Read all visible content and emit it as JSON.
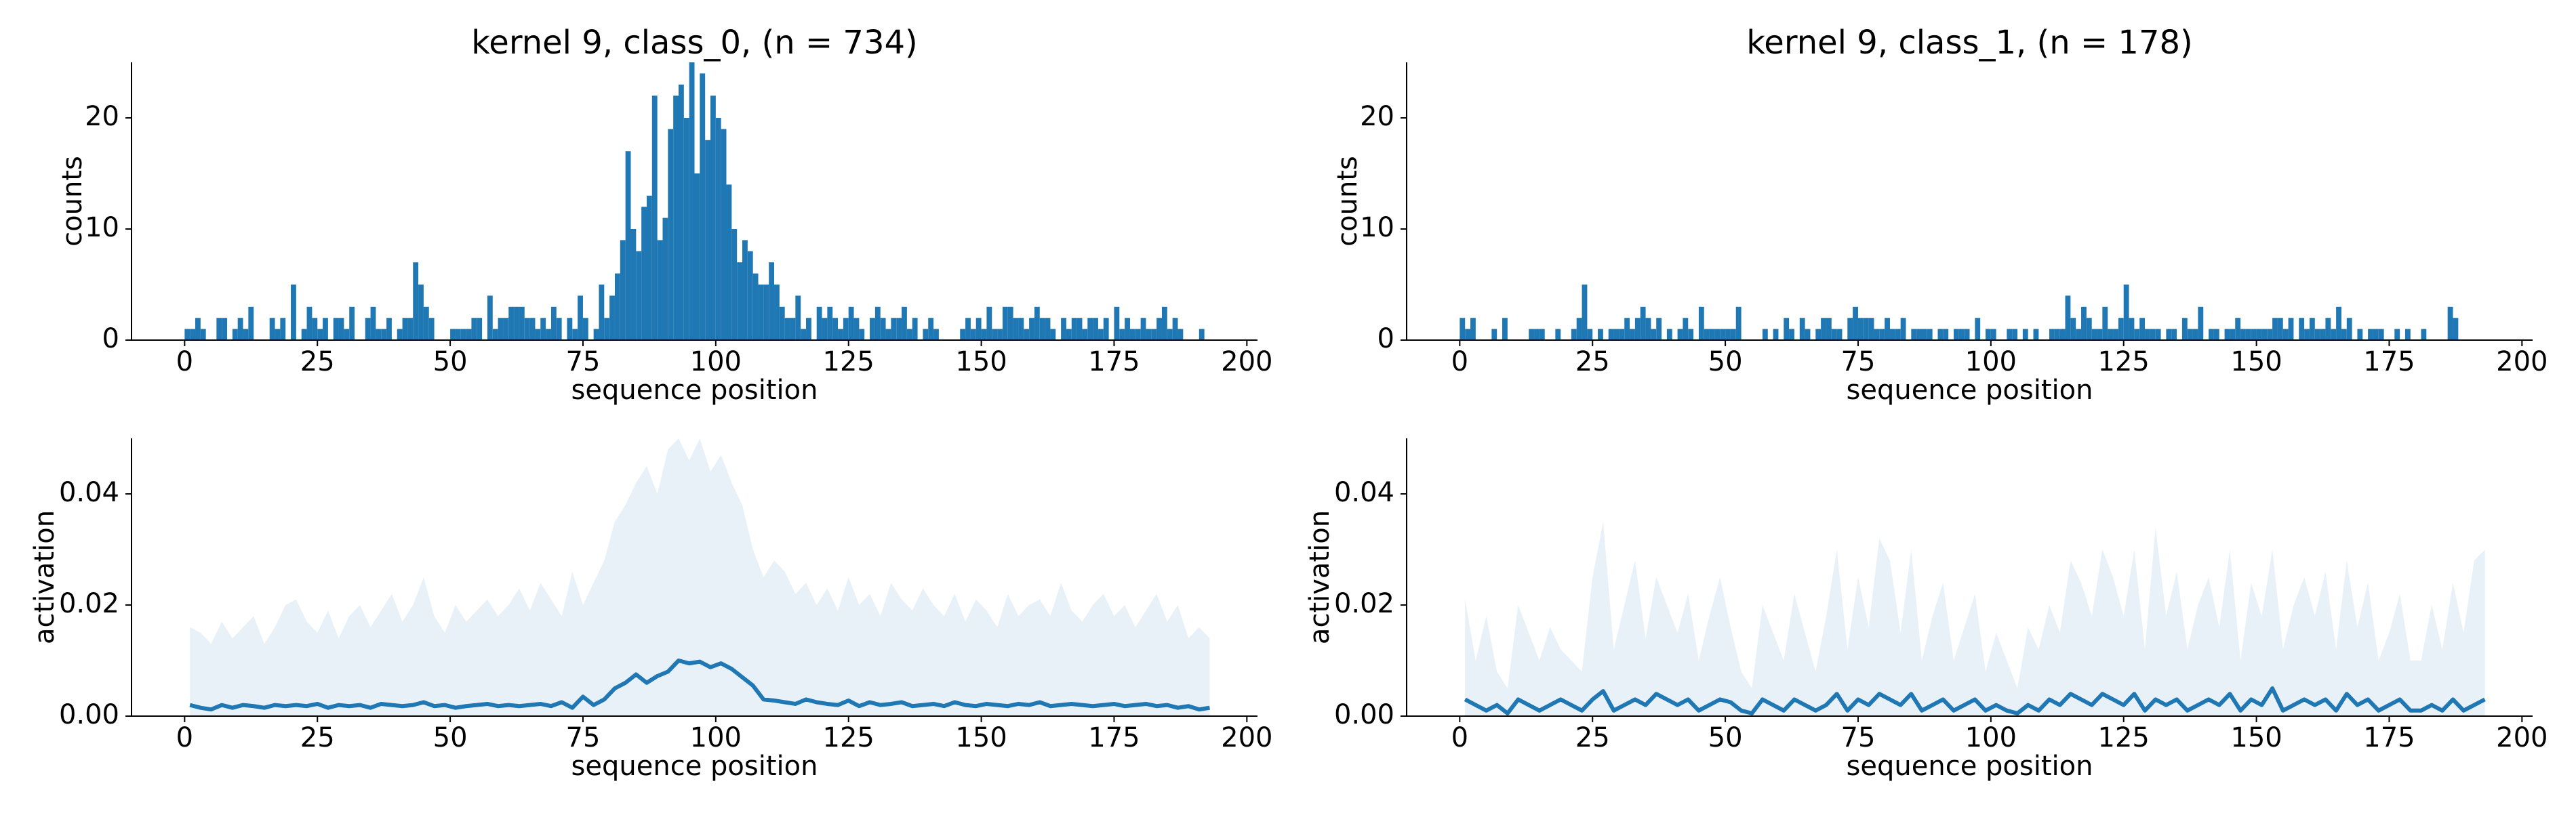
{
  "chart_data": [
    {
      "type": "histogram",
      "title": "kernel 9, class_0, (n = 734)",
      "xlabel": "sequence position",
      "ylabel": "counts",
      "color": "#1f77b4",
      "xlim": [
        -10,
        202
      ],
      "ylim": [
        0,
        25
      ],
      "xticks": [
        0,
        25,
        50,
        75,
        100,
        125,
        150,
        175,
        200
      ],
      "yticks": [
        0,
        10,
        20
      ],
      "bins": [
        0,
        1,
        2,
        3,
        4,
        5,
        6,
        7,
        8,
        9,
        10,
        11,
        12,
        13,
        14,
        15,
        16,
        17,
        18,
        19,
        20,
        21,
        22,
        23,
        24,
        25,
        26,
        27,
        28,
        29,
        30,
        31,
        32,
        33,
        34,
        35,
        36,
        37,
        38,
        39,
        40,
        41,
        42,
        43,
        44,
        45,
        46,
        47,
        48,
        49,
        50,
        51,
        52,
        53,
        54,
        55,
        56,
        57,
        58,
        59,
        60,
        61,
        62,
        63,
        64,
        65,
        66,
        67,
        68,
        69,
        70,
        71,
        72,
        73,
        74,
        75,
        76,
        77,
        78,
        79,
        80,
        81,
        82,
        83,
        84,
        85,
        86,
        87,
        88,
        89,
        90,
        91,
        92,
        93,
        94,
        95,
        96,
        97,
        98,
        99,
        100,
        101,
        102,
        103,
        104,
        105,
        106,
        107,
        108,
        109,
        110,
        111,
        112,
        113,
        114,
        115,
        116,
        117,
        118,
        119,
        120,
        121,
        122,
        123,
        124,
        125,
        126,
        127,
        128,
        129,
        130,
        131,
        132,
        133,
        134,
        135,
        136,
        137,
        138,
        139,
        140,
        141,
        142,
        143,
        144,
        145,
        146,
        147,
        148,
        149,
        150,
        151,
        152,
        153,
        154,
        155,
        156,
        157,
        158,
        159,
        160,
        161,
        162,
        163,
        164,
        165,
        166,
        167,
        168,
        169,
        170,
        171,
        172,
        173,
        174,
        175,
        176,
        177,
        178,
        179,
        180,
        181,
        182,
        183,
        184,
        185,
        186,
        187,
        188,
        189,
        190,
        191,
        192,
        193,
        194
      ],
      "values": [
        1,
        1,
        2,
        1,
        0,
        0,
        2,
        2,
        0,
        1,
        2,
        1,
        3,
        0,
        0,
        0,
        2,
        1,
        2,
        0,
        5,
        0,
        1,
        3,
        2,
        1,
        2,
        0,
        2,
        2,
        1,
        3,
        0,
        0,
        2,
        3,
        1,
        1,
        2,
        0,
        1,
        2,
        2,
        7,
        5,
        3,
        2,
        0,
        0,
        0,
        1,
        1,
        1,
        1,
        2,
        2,
        0,
        4,
        1,
        2,
        2,
        3,
        3,
        3,
        2,
        2,
        1,
        2,
        1,
        3,
        2,
        0,
        2,
        1,
        4,
        2,
        0,
        1,
        5,
        2,
        4,
        6,
        9,
        17,
        10,
        8,
        12,
        13,
        22,
        9,
        11,
        19,
        22,
        23,
        20,
        25,
        15,
        24,
        18,
        22,
        20,
        19,
        14,
        10,
        7,
        9,
        8,
        6,
        5,
        5,
        7,
        5,
        3,
        2,
        2,
        4,
        1,
        2,
        0,
        3,
        2,
        3,
        2,
        1,
        2,
        3,
        2,
        1,
        0,
        2,
        3,
        2,
        1,
        2,
        2,
        3,
        1,
        2,
        0,
        1,
        2,
        1,
        0,
        0,
        0,
        0,
        1,
        2,
        1,
        2,
        1,
        3,
        1,
        1,
        3,
        3,
        2,
        2,
        1,
        2,
        3,
        2,
        2,
        1,
        0,
        2,
        1,
        2,
        2,
        1,
        2,
        2,
        1,
        2,
        0,
        3,
        1,
        2,
        1,
        1,
        2,
        1,
        1,
        2,
        3,
        1,
        2,
        1,
        0,
        0,
        0,
        1,
        0,
        0
      ]
    },
    {
      "type": "histogram",
      "title": "kernel 9, class_1, (n = 178)",
      "xlabel": "sequence position",
      "ylabel": "counts",
      "color": "#1f77b4",
      "xlim": [
        -10,
        202
      ],
      "ylim": [
        0,
        25
      ],
      "xticks": [
        0,
        25,
        50,
        75,
        100,
        125,
        150,
        175,
        200
      ],
      "yticks": [
        0,
        10,
        20
      ],
      "bins": [
        0,
        1,
        2,
        3,
        4,
        5,
        6,
        7,
        8,
        9,
        10,
        11,
        12,
        13,
        14,
        15,
        16,
        17,
        18,
        19,
        20,
        21,
        22,
        23,
        24,
        25,
        26,
        27,
        28,
        29,
        30,
        31,
        32,
        33,
        34,
        35,
        36,
        37,
        38,
        39,
        40,
        41,
        42,
        43,
        44,
        45,
        46,
        47,
        48,
        49,
        50,
        51,
        52,
        53,
        54,
        55,
        56,
        57,
        58,
        59,
        60,
        61,
        62,
        63,
        64,
        65,
        66,
        67,
        68,
        69,
        70,
        71,
        72,
        73,
        74,
        75,
        76,
        77,
        78,
        79,
        80,
        81,
        82,
        83,
        84,
        85,
        86,
        87,
        88,
        89,
        90,
        91,
        92,
        93,
        94,
        95,
        96,
        97,
        98,
        99,
        100,
        101,
        102,
        103,
        104,
        105,
        106,
        107,
        108,
        109,
        110,
        111,
        112,
        113,
        114,
        115,
        116,
        117,
        118,
        119,
        120,
        121,
        122,
        123,
        124,
        125,
        126,
        127,
        128,
        129,
        130,
        131,
        132,
        133,
        134,
        135,
        136,
        137,
        138,
        139,
        140,
        141,
        142,
        143,
        144,
        145,
        146,
        147,
        148,
        149,
        150,
        151,
        152,
        153,
        154,
        155,
        156,
        157,
        158,
        159,
        160,
        161,
        162,
        163,
        164,
        165,
        166,
        167,
        168,
        169,
        170,
        171,
        172,
        173,
        174,
        175,
        176,
        177,
        178,
        179,
        180,
        181,
        182,
        183,
        184,
        185,
        186,
        187,
        188,
        189,
        190,
        191,
        192,
        193,
        194
      ],
      "values": [
        2,
        1,
        2,
        0,
        0,
        0,
        1,
        0,
        2,
        0,
        0,
        0,
        0,
        1,
        1,
        1,
        0,
        0,
        1,
        0,
        0,
        1,
        2,
        5,
        1,
        0,
        1,
        0,
        1,
        1,
        1,
        2,
        1,
        2,
        3,
        2,
        1,
        2,
        0,
        1,
        0,
        1,
        2,
        1,
        0,
        3,
        1,
        1,
        1,
        1,
        1,
        1,
        3,
        0,
        0,
        0,
        0,
        1,
        0,
        1,
        0,
        2,
        1,
        0,
        2,
        1,
        0,
        1,
        2,
        2,
        1,
        1,
        0,
        2,
        3,
        2,
        2,
        2,
        1,
        1,
        2,
        1,
        1,
        2,
        0,
        1,
        1,
        1,
        1,
        0,
        1,
        1,
        0,
        1,
        1,
        1,
        0,
        2,
        0,
        1,
        1,
        0,
        0,
        1,
        1,
        0,
        1,
        0,
        1,
        0,
        0,
        1,
        1,
        1,
        4,
        2,
        1,
        3,
        2,
        1,
        1,
        3,
        1,
        1,
        2,
        5,
        2,
        1,
        2,
        1,
        1,
        1,
        0,
        1,
        1,
        0,
        2,
        1,
        1,
        3,
        0,
        1,
        1,
        0,
        1,
        1,
        2,
        1,
        1,
        1,
        1,
        1,
        1,
        2,
        2,
        1,
        2,
        0,
        2,
        1,
        2,
        1,
        1,
        2,
        1,
        3,
        1,
        2,
        0,
        1,
        0,
        1,
        1,
        1,
        0,
        0,
        1,
        0,
        1,
        0,
        0,
        1,
        0,
        0,
        0,
        0,
        3,
        2,
        0,
        0,
        0,
        0,
        0,
        0
      ]
    },
    {
      "type": "line",
      "xlabel": "sequence position",
      "ylabel": "activation",
      "color": "#1f77b4",
      "fill_color": "#e8f1f8",
      "xlim": [
        -10,
        202
      ],
      "ylim": [
        0,
        0.05
      ],
      "xticks": [
        0,
        25,
        50,
        75,
        100,
        125,
        150,
        175,
        200
      ],
      "yticks": [
        {
          "value": 0,
          "label": "0.00"
        },
        {
          "value": 0.02,
          "label": "0.02"
        },
        {
          "value": 0.04,
          "label": "0.04"
        }
      ],
      "x": [
        1,
        3,
        5,
        7,
        9,
        11,
        13,
        15,
        17,
        19,
        21,
        23,
        25,
        27,
        29,
        31,
        33,
        35,
        37,
        39,
        41,
        43,
        45,
        47,
        49,
        51,
        53,
        55,
        57,
        59,
        61,
        63,
        65,
        67,
        69,
        71,
        73,
        75,
        77,
        79,
        81,
        83,
        85,
        87,
        89,
        91,
        93,
        95,
        97,
        99,
        101,
        103,
        105,
        107,
        109,
        111,
        113,
        115,
        117,
        119,
        121,
        123,
        125,
        127,
        129,
        131,
        133,
        135,
        137,
        139,
        141,
        143,
        145,
        147,
        149,
        151,
        153,
        155,
        157,
        159,
        161,
        163,
        165,
        167,
        169,
        171,
        173,
        175,
        177,
        179,
        181,
        183,
        185,
        187,
        189,
        191,
        193
      ],
      "values": [
        0.002,
        0.0015,
        0.0012,
        0.002,
        0.0015,
        0.002,
        0.0018,
        0.0015,
        0.002,
        0.0018,
        0.002,
        0.0018,
        0.0022,
        0.0015,
        0.002,
        0.0018,
        0.002,
        0.0015,
        0.0022,
        0.002,
        0.0018,
        0.002,
        0.0025,
        0.0018,
        0.002,
        0.0015,
        0.0018,
        0.002,
        0.0022,
        0.0018,
        0.002,
        0.0018,
        0.002,
        0.0022,
        0.0018,
        0.0025,
        0.0015,
        0.0035,
        0.002,
        0.003,
        0.005,
        0.006,
        0.0075,
        0.006,
        0.0072,
        0.008,
        0.01,
        0.0095,
        0.0098,
        0.0088,
        0.0095,
        0.0085,
        0.007,
        0.0055,
        0.003,
        0.0028,
        0.0025,
        0.0022,
        0.003,
        0.0025,
        0.0022,
        0.002,
        0.0028,
        0.0018,
        0.0025,
        0.002,
        0.0022,
        0.0025,
        0.0018,
        0.002,
        0.0022,
        0.0018,
        0.0025,
        0.002,
        0.0018,
        0.0022,
        0.002,
        0.0018,
        0.0022,
        0.002,
        0.0025,
        0.0018,
        0.002,
        0.0022,
        0.002,
        0.0018,
        0.002,
        0.0022,
        0.0018,
        0.002,
        0.0022,
        0.0018,
        0.002,
        0.0015,
        0.0018,
        0.0012,
        0.0015
      ],
      "fill_upper": [
        0.016,
        0.015,
        0.013,
        0.017,
        0.014,
        0.016,
        0.018,
        0.013,
        0.016,
        0.02,
        0.021,
        0.017,
        0.015,
        0.019,
        0.014,
        0.018,
        0.02,
        0.016,
        0.019,
        0.022,
        0.017,
        0.02,
        0.025,
        0.018,
        0.015,
        0.02,
        0.017,
        0.019,
        0.021,
        0.018,
        0.02,
        0.023,
        0.019,
        0.024,
        0.021,
        0.018,
        0.026,
        0.02,
        0.024,
        0.028,
        0.035,
        0.038,
        0.042,
        0.045,
        0.04,
        0.048,
        0.05,
        0.046,
        0.05,
        0.044,
        0.047,
        0.042,
        0.038,
        0.03,
        0.025,
        0.028,
        0.026,
        0.022,
        0.024,
        0.02,
        0.023,
        0.019,
        0.025,
        0.02,
        0.022,
        0.018,
        0.024,
        0.021,
        0.019,
        0.023,
        0.02,
        0.018,
        0.022,
        0.017,
        0.021,
        0.019,
        0.016,
        0.022,
        0.018,
        0.02,
        0.021,
        0.018,
        0.024,
        0.019,
        0.017,
        0.02,
        0.022,
        0.018,
        0.02,
        0.016,
        0.019,
        0.022,
        0.017,
        0.02,
        0.014,
        0.016,
        0.014
      ]
    },
    {
      "type": "line",
      "xlabel": "sequence position",
      "ylabel": "activation",
      "color": "#1f77b4",
      "fill_color": "#e8f1f8",
      "xlim": [
        -10,
        202
      ],
      "ylim": [
        0,
        0.05
      ],
      "xticks": [
        0,
        25,
        50,
        75,
        100,
        125,
        150,
        175,
        200
      ],
      "yticks": [
        {
          "value": 0,
          "label": "0.00"
        },
        {
          "value": 0.02,
          "label": "0.02"
        },
        {
          "value": 0.04,
          "label": "0.04"
        }
      ],
      "x": [
        1,
        3,
        5,
        7,
        9,
        11,
        13,
        15,
        17,
        19,
        21,
        23,
        25,
        27,
        29,
        31,
        33,
        35,
        37,
        39,
        41,
        43,
        45,
        47,
        49,
        51,
        53,
        55,
        57,
        59,
        61,
        63,
        65,
        67,
        69,
        71,
        73,
        75,
        77,
        79,
        81,
        83,
        85,
        87,
        89,
        91,
        93,
        95,
        97,
        99,
        101,
        103,
        105,
        107,
        109,
        111,
        113,
        115,
        117,
        119,
        121,
        123,
        125,
        127,
        129,
        131,
        133,
        135,
        137,
        139,
        141,
        143,
        145,
        147,
        149,
        151,
        153,
        155,
        157,
        159,
        161,
        163,
        165,
        167,
        169,
        171,
        173,
        175,
        177,
        179,
        181,
        183,
        185,
        187,
        189,
        191,
        193
      ],
      "values": [
        0.003,
        0.002,
        0.001,
        0.002,
        0.0005,
        0.003,
        0.002,
        0.001,
        0.002,
        0.003,
        0.002,
        0.001,
        0.003,
        0.0045,
        0.001,
        0.002,
        0.003,
        0.002,
        0.004,
        0.003,
        0.002,
        0.003,
        0.001,
        0.002,
        0.003,
        0.0025,
        0.001,
        0.0005,
        0.003,
        0.002,
        0.001,
        0.003,
        0.002,
        0.001,
        0.002,
        0.004,
        0.001,
        0.003,
        0.002,
        0.004,
        0.003,
        0.002,
        0.004,
        0.001,
        0.002,
        0.003,
        0.001,
        0.002,
        0.003,
        0.001,
        0.002,
        0.001,
        0.0005,
        0.002,
        0.001,
        0.003,
        0.002,
        0.004,
        0.003,
        0.002,
        0.004,
        0.003,
        0.002,
        0.004,
        0.001,
        0.003,
        0.002,
        0.003,
        0.001,
        0.002,
        0.003,
        0.002,
        0.004,
        0.001,
        0.003,
        0.002,
        0.005,
        0.001,
        0.002,
        0.003,
        0.002,
        0.003,
        0.001,
        0.004,
        0.002,
        0.003,
        0.001,
        0.002,
        0.003,
        0.001,
        0.001,
        0.002,
        0.001,
        0.003,
        0.001,
        0.002,
        0.003
      ],
      "fill_upper": [
        0.021,
        0.01,
        0.018,
        0.008,
        0.005,
        0.02,
        0.015,
        0.01,
        0.016,
        0.012,
        0.01,
        0.008,
        0.025,
        0.035,
        0.012,
        0.02,
        0.028,
        0.014,
        0.025,
        0.02,
        0.015,
        0.022,
        0.01,
        0.018,
        0.025,
        0.016,
        0.008,
        0.005,
        0.02,
        0.015,
        0.01,
        0.022,
        0.015,
        0.008,
        0.018,
        0.03,
        0.012,
        0.025,
        0.016,
        0.032,
        0.028,
        0.015,
        0.03,
        0.01,
        0.018,
        0.024,
        0.01,
        0.016,
        0.022,
        0.008,
        0.015,
        0.01,
        0.005,
        0.016,
        0.012,
        0.02,
        0.015,
        0.028,
        0.024,
        0.018,
        0.03,
        0.025,
        0.018,
        0.03,
        0.012,
        0.034,
        0.018,
        0.026,
        0.012,
        0.02,
        0.025,
        0.016,
        0.03,
        0.01,
        0.024,
        0.018,
        0.03,
        0.012,
        0.02,
        0.025,
        0.018,
        0.026,
        0.012,
        0.028,
        0.016,
        0.024,
        0.01,
        0.015,
        0.022,
        0.01,
        0.01,
        0.02,
        0.012,
        0.024,
        0.015,
        0.028,
        0.03
      ]
    }
  ]
}
